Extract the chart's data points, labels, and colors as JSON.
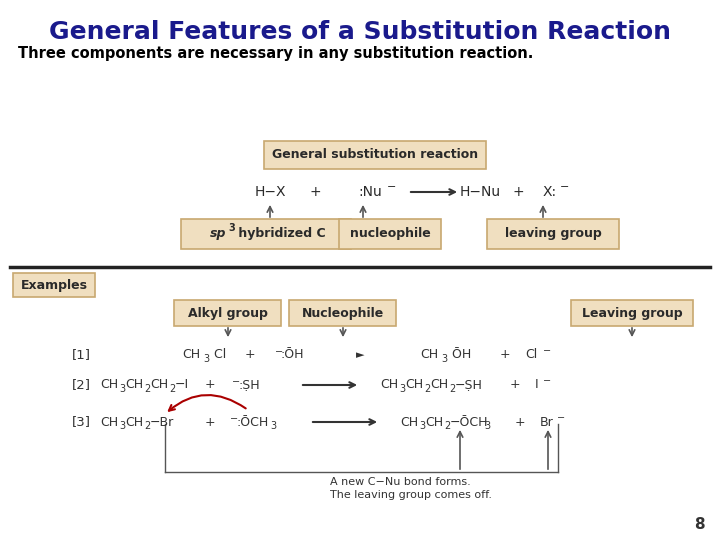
{
  "title": "General Features of a Substitution Reaction",
  "subtitle": "Three components are necessary in any substitution reaction.",
  "title_color": "#1a1a8c",
  "subtitle_color": "#000000",
  "background_color": "#ffffff",
  "box_fill": "#f0dfc0",
  "box_edge": "#c8a870",
  "page_number": "8"
}
